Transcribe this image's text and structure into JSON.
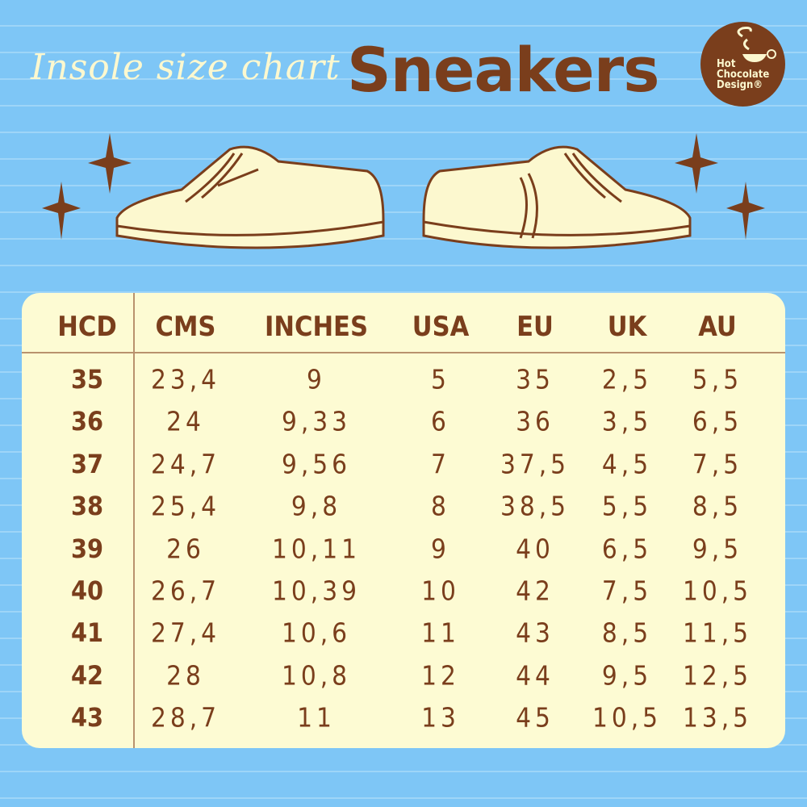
{
  "title": {
    "script": "Insole size chart",
    "main": "Sneakers"
  },
  "logo": {
    "lines": [
      "Hot",
      "Chocolate",
      "Design®"
    ]
  },
  "colors": {
    "background": "#7ec6f6",
    "brown": "#7a3e1c",
    "cream": "#fdfbd3"
  },
  "table": {
    "headers": [
      "HCD",
      "CMS",
      "INCHES",
      "USA",
      "EU",
      "UK",
      "AU"
    ],
    "rows": [
      [
        "35",
        "23,4",
        "9",
        "5",
        "35",
        "2,5",
        "5,5"
      ],
      [
        "36",
        "24",
        "9,33",
        "6",
        "36",
        "3,5",
        "6,5"
      ],
      [
        "37",
        "24,7",
        "9,56",
        "7",
        "37,5",
        "4,5",
        "7,5"
      ],
      [
        "38",
        "25,4",
        "9,8",
        "8",
        "38,5",
        "5,5",
        "8,5"
      ],
      [
        "39",
        "26",
        "10,11",
        "9",
        "40",
        "6,5",
        "9,5"
      ],
      [
        "40",
        "26,7",
        "10,39",
        "10",
        "42",
        "7,5",
        "10,5"
      ],
      [
        "41",
        "27,4",
        "10,6",
        "11",
        "43",
        "8,5",
        "11,5"
      ],
      [
        "42",
        "28",
        "10,8",
        "12",
        "44",
        "9,5",
        "12,5"
      ],
      [
        "43",
        "28,7",
        "11",
        "13",
        "45",
        "10,5",
        "13,5"
      ]
    ]
  }
}
